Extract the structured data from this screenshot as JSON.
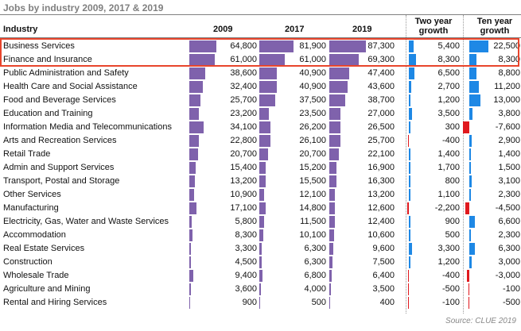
{
  "chart_data": {
    "type": "table",
    "title": "Jobs by industry 2009, 2017 & 2019",
    "source": "Source: CLUE 2019",
    "columns": {
      "industry": "Industry",
      "y2009": "2009",
      "y2017": "2017",
      "y2019": "2019",
      "two_year_growth": "Two year growth",
      "ten_year_growth": "Ten year growth"
    },
    "colors": {
      "bar": "#7f62ac",
      "growth_positive": "#1e88e5",
      "growth_negative": "#e0191e",
      "highlight": "#e8452c"
    },
    "highlighted_rows": [
      "Business Services",
      "Finance and Insurance"
    ],
    "rows": [
      {
        "industry": "Business Services",
        "y2009": 64800,
        "y2017": 81900,
        "y2019": 87300,
        "two_year": 5400,
        "ten_year": 22500
      },
      {
        "industry": "Finance and Insurance",
        "y2009": 61000,
        "y2017": 61000,
        "y2019": 69300,
        "two_year": 8300,
        "ten_year": 8300
      },
      {
        "industry": "Public Administration and Safety",
        "y2009": 38600,
        "y2017": 40900,
        "y2019": 47400,
        "two_year": 6500,
        "ten_year": 8800
      },
      {
        "industry": "Health Care and Social Assistance",
        "y2009": 32400,
        "y2017": 40900,
        "y2019": 43600,
        "two_year": 2700,
        "ten_year": 11200
      },
      {
        "industry": "Food and Beverage Services",
        "y2009": 25700,
        "y2017": 37500,
        "y2019": 38700,
        "two_year": 1200,
        "ten_year": 13000
      },
      {
        "industry": "Education and Training",
        "y2009": 23200,
        "y2017": 23500,
        "y2019": 27000,
        "two_year": 3500,
        "ten_year": 3800
      },
      {
        "industry": "Information Media and Telecommunications",
        "y2009": 34100,
        "y2017": 26200,
        "y2019": 26500,
        "two_year": 300,
        "ten_year": -7600
      },
      {
        "industry": "Arts and Recreation Services",
        "y2009": 22800,
        "y2017": 26100,
        "y2019": 25700,
        "two_year": -400,
        "ten_year": 2900
      },
      {
        "industry": "Retail Trade",
        "y2009": 20700,
        "y2017": 20700,
        "y2019": 22100,
        "two_year": 1400,
        "ten_year": 1400
      },
      {
        "industry": "Admin and Support Services",
        "y2009": 15400,
        "y2017": 15200,
        "y2019": 16900,
        "two_year": 1700,
        "ten_year": 1500
      },
      {
        "industry": "Transport, Postal and Storage",
        "y2009": 13200,
        "y2017": 15500,
        "y2019": 16300,
        "two_year": 800,
        "ten_year": 3100
      },
      {
        "industry": "Other Services",
        "y2009": 10900,
        "y2017": 12100,
        "y2019": 13200,
        "two_year": 1100,
        "ten_year": 2300
      },
      {
        "industry": "Manufacturing",
        "y2009": 17100,
        "y2017": 14800,
        "y2019": 12600,
        "two_year": -2200,
        "ten_year": -4500
      },
      {
        "industry": "Electricity, Gas, Water and Waste Services",
        "y2009": 5800,
        "y2017": 11500,
        "y2019": 12400,
        "two_year": 900,
        "ten_year": 6600
      },
      {
        "industry": "Accommodation",
        "y2009": 8300,
        "y2017": 10100,
        "y2019": 10600,
        "two_year": 500,
        "ten_year": 2300
      },
      {
        "industry": "Real Estate Services",
        "y2009": 3300,
        "y2017": 6300,
        "y2019": 9600,
        "two_year": 3300,
        "ten_year": 6300
      },
      {
        "industry": "Construction",
        "y2009": 4500,
        "y2017": 6300,
        "y2019": 7500,
        "two_year": 1200,
        "ten_year": 3000
      },
      {
        "industry": "Wholesale Trade",
        "y2009": 9400,
        "y2017": 6800,
        "y2019": 6400,
        "two_year": -400,
        "ten_year": -3000
      },
      {
        "industry": "Agriculture and Mining",
        "y2009": 3600,
        "y2017": 4000,
        "y2019": 3500,
        "two_year": -500,
        "ten_year": -100
      },
      {
        "industry": "Rental and Hiring Services",
        "y2009": 900,
        "y2017": 500,
        "y2019": 400,
        "two_year": -100,
        "ten_year": -500
      }
    ]
  }
}
